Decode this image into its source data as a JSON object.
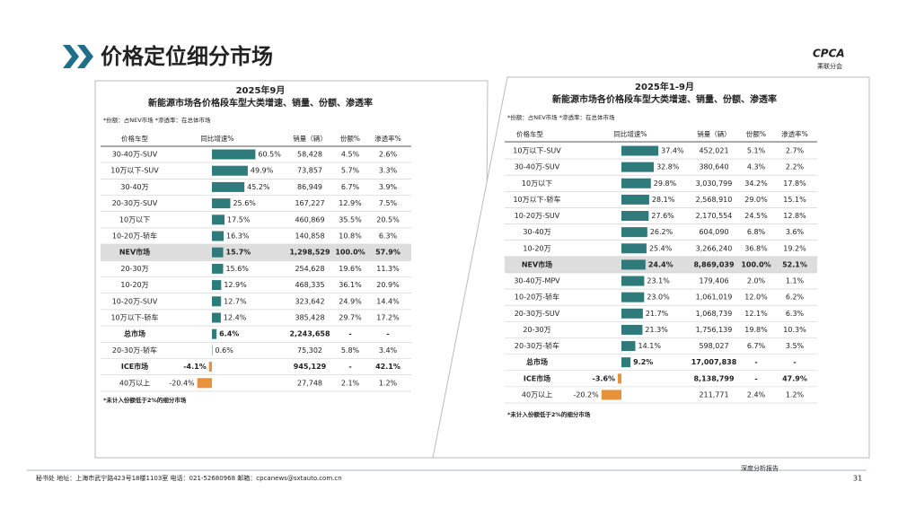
{
  "header": {
    "title": "价格定位细分市场",
    "logo": "CPCA",
    "logo_sub": "乘联分会"
  },
  "colors": {
    "positive": "#2f7b7b",
    "negative": "#e8923c",
    "title": "#1f6f8b"
  },
  "tables": [
    {
      "title": "2025年9月",
      "subtitle": "新能源市场各价格段车型大类增速、销量、份额、渗透率",
      "note": "*份额：占NEV市场  *渗透率：在总体市场",
      "columns": [
        "价格车型",
        "同比增速%",
        "销量（辆）",
        "份额%",
        "渗透率%"
      ],
      "rows": [
        {
          "segment": "30-40万-SUV",
          "growth": 60.5,
          "growth_label": "60.5%",
          "sales": "58,428",
          "share": "4.5%",
          "penetration": "2.6%"
        },
        {
          "segment": "10万以下-SUV",
          "growth": 49.9,
          "growth_label": "49.9%",
          "sales": "73,857",
          "share": "5.7%",
          "penetration": "3.3%"
        },
        {
          "segment": "30-40万",
          "growth": 45.2,
          "growth_label": "45.2%",
          "sales": "86,949",
          "share": "6.7%",
          "penetration": "3.9%"
        },
        {
          "segment": "20-30万-SUV",
          "growth": 25.6,
          "growth_label": "25.6%",
          "sales": "167,227",
          "share": "12.9%",
          "penetration": "7.5%"
        },
        {
          "segment": "10万以下",
          "growth": 17.5,
          "growth_label": "17.5%",
          "sales": "460,869",
          "share": "35.5%",
          "penetration": "20.5%"
        },
        {
          "segment": "10-20万-轿车",
          "growth": 16.3,
          "growth_label": "16.3%",
          "sales": "140,858",
          "share": "10.8%",
          "penetration": "6.3%"
        },
        {
          "segment": "NEV市场",
          "growth": 15.7,
          "growth_label": "15.7%",
          "sales": "1,298,529",
          "share": "100.0%",
          "penetration": "57.9%",
          "bold": true,
          "highlight": true
        },
        {
          "segment": "20-30万",
          "growth": 15.6,
          "growth_label": "15.6%",
          "sales": "254,628",
          "share": "19.6%",
          "penetration": "11.3%"
        },
        {
          "segment": "10-20万",
          "growth": 12.9,
          "growth_label": "12.9%",
          "sales": "468,335",
          "share": "36.1%",
          "penetration": "20.9%"
        },
        {
          "segment": "10-20万-SUV",
          "growth": 12.7,
          "growth_label": "12.7%",
          "sales": "323,642",
          "share": "24.9%",
          "penetration": "14.4%"
        },
        {
          "segment": "10万以下-轿车",
          "growth": 12.4,
          "growth_label": "12.4%",
          "sales": "385,428",
          "share": "29.7%",
          "penetration": "17.2%"
        },
        {
          "segment": "总市场",
          "growth": 6.4,
          "growth_label": "6.4%",
          "sales": "2,243,658",
          "share": "-",
          "penetration": "-",
          "bold": true
        },
        {
          "segment": "20-30万-轿车",
          "growth": 0.6,
          "growth_label": "0.6%",
          "sales": "75,302",
          "share": "5.8%",
          "penetration": "3.4%"
        },
        {
          "segment": "ICE市场",
          "growth": -4.1,
          "growth_label": "-4.1%",
          "sales": "945,129",
          "share": "-",
          "penetration": "42.1%",
          "bold": true
        },
        {
          "segment": "40万以上",
          "growth": -20.4,
          "growth_label": "-20.4%",
          "sales": "27,748",
          "share": "2.1%",
          "penetration": "1.2%"
        }
      ],
      "footnote": "*未计入份额低于2%的细分市场"
    },
    {
      "title": "2025年1-9月",
      "subtitle": "新能源市场各价格段车型大类增速、销量、份额、渗透率",
      "note": "*份额：占NEV市场  *渗透率：在总体市场",
      "columns": [
        "价格车型",
        "同比增速%",
        "销量（辆）",
        "份额%",
        "渗透率%"
      ],
      "rows": [
        {
          "segment": "10万以下-SUV",
          "growth": 37.4,
          "growth_label": "37.4%",
          "sales": "452,021",
          "share": "5.1%",
          "penetration": "2.7%"
        },
        {
          "segment": "30-40万-SUV",
          "growth": 32.8,
          "growth_label": "32.8%",
          "sales": "380,640",
          "share": "4.3%",
          "penetration": "2.2%"
        },
        {
          "segment": "10万以下",
          "growth": 29.8,
          "growth_label": "29.8%",
          "sales": "3,030,799",
          "share": "34.2%",
          "penetration": "17.8%"
        },
        {
          "segment": "10万以下-轿车",
          "growth": 28.1,
          "growth_label": "28.1%",
          "sales": "2,568,910",
          "share": "29.0%",
          "penetration": "15.1%"
        },
        {
          "segment": "10-20万-SUV",
          "growth": 27.6,
          "growth_label": "27.6%",
          "sales": "2,170,554",
          "share": "24.5%",
          "penetration": "12.8%"
        },
        {
          "segment": "30-40万",
          "growth": 26.2,
          "growth_label": "26.2%",
          "sales": "604,090",
          "share": "6.8%",
          "penetration": "3.6%"
        },
        {
          "segment": "10-20万",
          "growth": 25.4,
          "growth_label": "25.4%",
          "sales": "3,266,240",
          "share": "36.8%",
          "penetration": "19.2%"
        },
        {
          "segment": "NEV市场",
          "growth": 24.4,
          "growth_label": "24.4%",
          "sales": "8,869,039",
          "share": "100.0%",
          "penetration": "52.1%",
          "bold": true,
          "highlight": true
        },
        {
          "segment": "30-40万-MPV",
          "growth": 23.1,
          "growth_label": "23.1%",
          "sales": "179,406",
          "share": "2.0%",
          "penetration": "1.1%"
        },
        {
          "segment": "10-20万-轿车",
          "growth": 23.0,
          "growth_label": "23.0%",
          "sales": "1,061,019",
          "share": "12.0%",
          "penetration": "6.2%"
        },
        {
          "segment": "20-30万-SUV",
          "growth": 21.7,
          "growth_label": "21.7%",
          "sales": "1,068,739",
          "share": "12.1%",
          "penetration": "6.3%"
        },
        {
          "segment": "20-30万",
          "growth": 21.3,
          "growth_label": "21.3%",
          "sales": "1,756,139",
          "share": "19.8%",
          "penetration": "10.3%"
        },
        {
          "segment": "20-30万-轿车",
          "growth": 14.1,
          "growth_label": "14.1%",
          "sales": "598,027",
          "share": "6.7%",
          "penetration": "3.5%"
        },
        {
          "segment": "总市场",
          "growth": 9.2,
          "growth_label": "9.2%",
          "sales": "17,007,838",
          "share": "-",
          "penetration": "-",
          "bold": true
        },
        {
          "segment": "ICE市场",
          "growth": -3.6,
          "growth_label": "-3.6%",
          "sales": "8,138,799",
          "share": "-",
          "penetration": "47.9%",
          "bold": true
        },
        {
          "segment": "40万以上",
          "growth": -20.2,
          "growth_label": "-20.2%",
          "sales": "211,771",
          "share": "2.4%",
          "penetration": "1.2%"
        }
      ],
      "footnote": "*未计入份额低于2%的细分市场"
    }
  ],
  "footer": {
    "address": "秘书处  地址：上海市武宁路423号18楼1103室  电话：021-52680968  邮箱：cpcanews@sxtauto.com.cn",
    "report": "深度分析报告",
    "page": "31"
  }
}
